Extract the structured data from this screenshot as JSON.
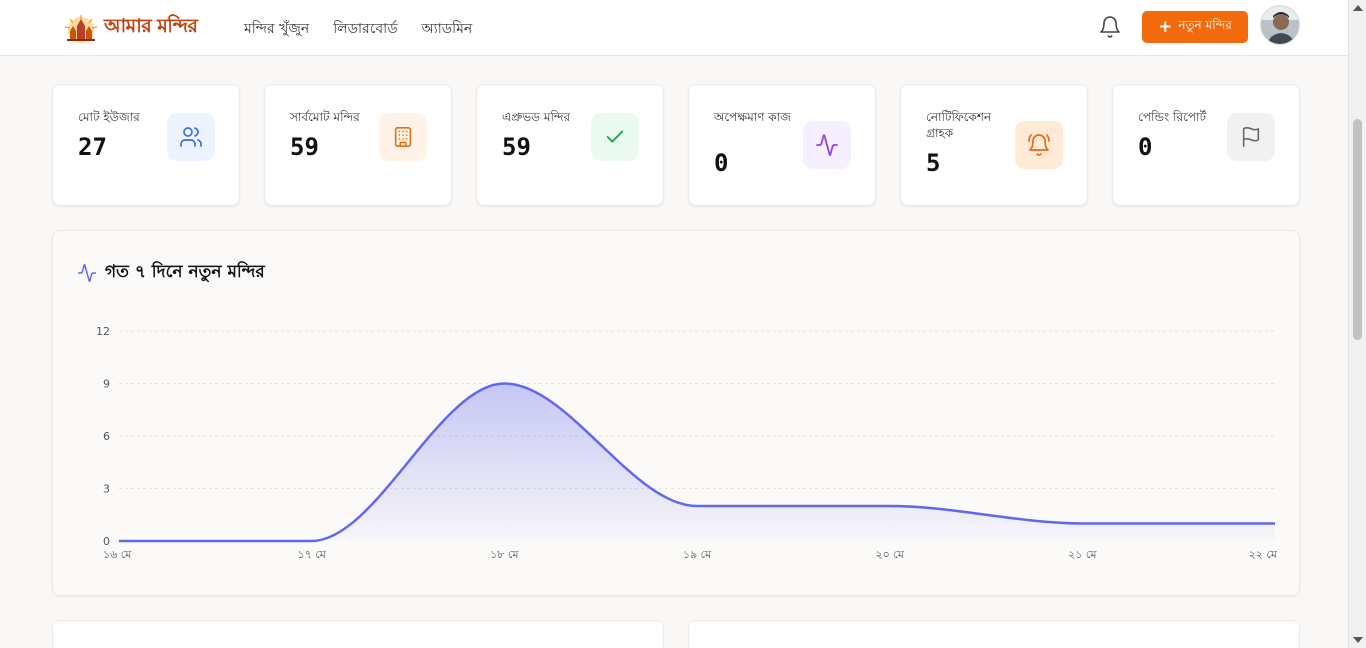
{
  "header": {
    "logo_text": "আমার মন্দির",
    "nav": [
      "মন্দির খুঁজুন",
      "লিডারবোর্ড",
      "অ্যাডমিন"
    ],
    "new_button_label": "নতুন মন্দির"
  },
  "stats": [
    {
      "label": "মোট ইউজার",
      "value": "27",
      "icon": "users-icon",
      "bg": "#eef4ff",
      "color": "#3b6fd8"
    },
    {
      "label": "সার্বমোট মন্দির",
      "value": "59",
      "icon": "building-icon",
      "bg": "#fff3e8",
      "color": "#ea6a12"
    },
    {
      "label": "এপ্রুভড মন্দির",
      "value": "59",
      "icon": "check-icon",
      "bg": "#eafaf0",
      "color": "#22a04b"
    },
    {
      "label": "অপেক্ষমাণ কাজ",
      "value": "0",
      "icon": "activity-icon",
      "bg": "#f6efff",
      "color": "#9b3fe0"
    },
    {
      "label": "নোটিফিকেশন গ্রাহক",
      "value": "5",
      "icon": "bell-ring-icon",
      "bg": "#ffead6",
      "color": "#ea6a12"
    },
    {
      "label": "পেন্ডিং রিপোর্ট",
      "value": "0",
      "icon": "flag-icon",
      "bg": "#f1f1f1",
      "color": "#666666"
    }
  ],
  "chart_title": "গত ৭ দিনে নতুন মন্দির",
  "chart_data": {
    "type": "area",
    "x": [
      "১৬ মে",
      "১৭ মে",
      "১৮ মে",
      "১৯ মে",
      "২০ মে",
      "২১ মে",
      "২২ মে"
    ],
    "values": [
      0,
      0,
      9,
      2,
      2,
      1,
      1
    ],
    "yticks": [
      0,
      3,
      6,
      9,
      12
    ],
    "ylim": [
      0,
      12
    ],
    "grid": true,
    "color": "#6366f1"
  }
}
